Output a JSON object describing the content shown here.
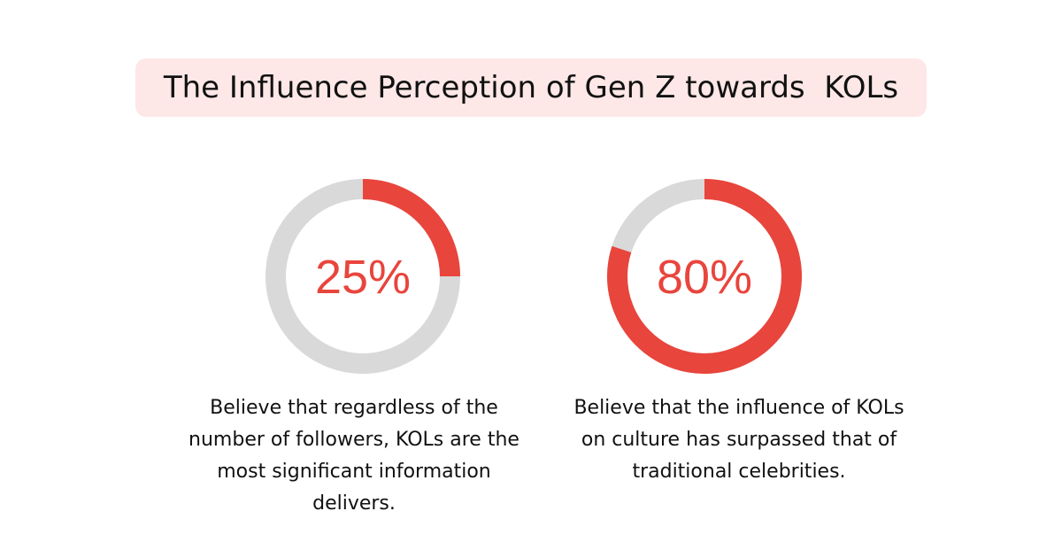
{
  "title": "The Influence Perception of Gen Z towards  KOLs",
  "colors": {
    "accent": "#e8453c",
    "track": "#d9d9d9",
    "title_bg": "#fde7e7"
  },
  "chart_data": [
    {
      "type": "pie",
      "subtype": "donut",
      "value": 25,
      "label": "25%",
      "max": 100,
      "caption_lines": [
        "Believe that regardless of the",
        "number of followers, KOLs are the",
        "most significant information",
        "delivers."
      ]
    },
    {
      "type": "pie",
      "subtype": "donut",
      "value": 80,
      "label": "80%",
      "max": 100,
      "caption_lines": [
        "Believe that the influence of KOLs",
        "on culture has surpassed that of",
        "traditional celebrities."
      ]
    }
  ]
}
